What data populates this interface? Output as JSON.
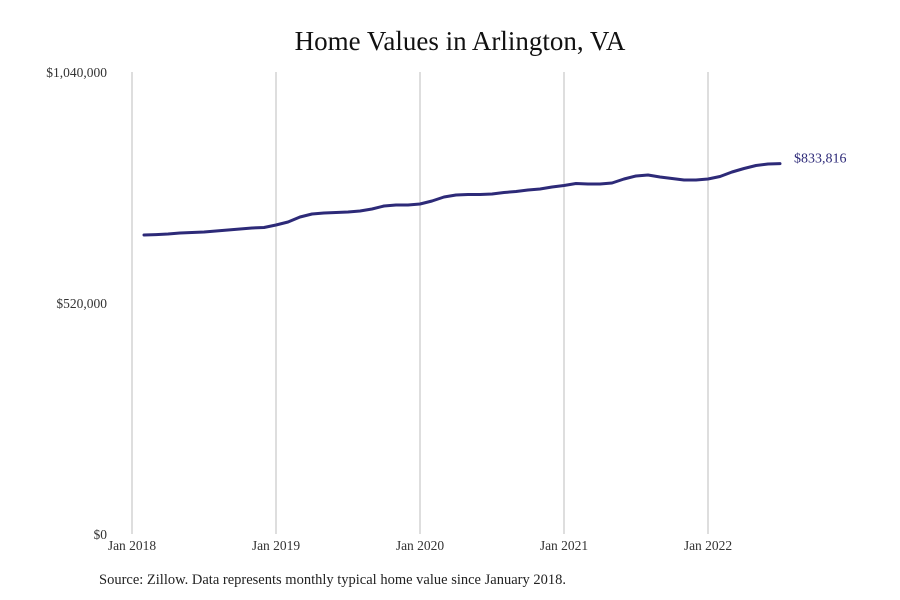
{
  "chart_data": {
    "type": "line",
    "title": "Home Values in Arlington, VA",
    "xlabel": "",
    "ylabel": "",
    "ylim": [
      0,
      1040000
    ],
    "y_ticks": [
      {
        "value": 0,
        "label": "$0"
      },
      {
        "value": 520000,
        "label": "$520,000"
      },
      {
        "value": 1040000,
        "label": "$1,040,000"
      }
    ],
    "x_ticks": [
      {
        "value": "2018-01",
        "label": "Jan 2018"
      },
      {
        "value": "2019-01",
        "label": "Jan 2019"
      },
      {
        "value": "2020-01",
        "label": "Jan 2020"
      },
      {
        "value": "2021-01",
        "label": "Jan 2021"
      },
      {
        "value": "2022-01",
        "label": "Jan 2022"
      }
    ],
    "xlim": [
      "2018-01",
      "2022-12"
    ],
    "grid": "vertical",
    "line_color": "#2d2a78",
    "end_label": "$833,816",
    "series": [
      {
        "x": [
          "2018-02",
          "2018-03",
          "2018-04",
          "2018-05",
          "2018-06",
          "2018-07",
          "2018-08",
          "2018-09",
          "2018-10",
          "2018-11",
          "2018-12",
          "2019-01",
          "2019-02",
          "2019-03",
          "2019-04",
          "2019-05",
          "2019-06",
          "2019-07",
          "2019-08",
          "2019-09",
          "2019-10",
          "2019-11",
          "2019-12",
          "2020-01",
          "2020-02",
          "2020-03",
          "2020-04",
          "2020-05",
          "2020-06",
          "2020-07",
          "2020-08",
          "2020-09",
          "2020-10",
          "2020-11",
          "2020-12",
          "2021-01",
          "2021-02",
          "2021-03",
          "2021-04",
          "2021-05",
          "2021-06",
          "2021-07",
          "2021-08",
          "2021-09",
          "2021-10",
          "2021-11",
          "2021-12",
          "2022-01",
          "2022-02",
          "2022-03",
          "2022-04",
          "2022-05",
          "2022-06",
          "2022-07"
        ],
        "values": [
          673000,
          674000,
          675300,
          677600,
          678700,
          679800,
          682100,
          684300,
          686600,
          688800,
          690000,
          695600,
          702300,
          713600,
          720300,
          722600,
          723700,
          724800,
          727100,
          731600,
          738300,
          740600,
          740600,
          742800,
          749600,
          758600,
          763100,
          764200,
          764200,
          765400,
          768700,
          771000,
          774400,
          776600,
          781100,
          784500,
          789000,
          787900,
          787900,
          790100,
          799100,
          805900,
          808100,
          803600,
          800300,
          796900,
          796900,
          799100,
          804800,
          814900,
          822800,
          829500,
          832900,
          833816
        ]
      }
    ]
  },
  "source": "Source: Zillow. Data represents monthly typical home value since January 2018."
}
